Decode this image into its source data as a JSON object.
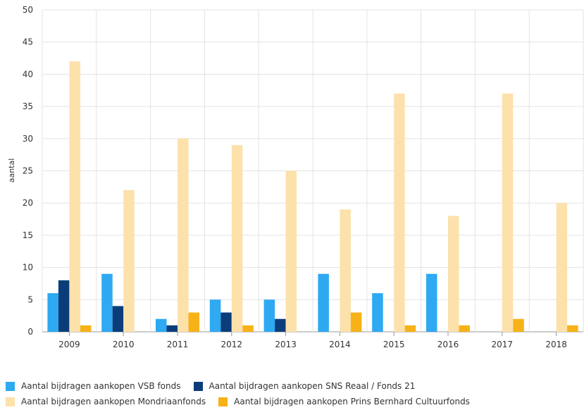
{
  "chart_data": {
    "type": "bar",
    "title": "",
    "xlabel": "",
    "ylabel": "aantal",
    "ylim": [
      0,
      50
    ],
    "yticks": [
      0,
      5,
      10,
      15,
      20,
      25,
      30,
      35,
      40,
      45,
      50
    ],
    "grid": true,
    "legend_position": "bottom",
    "categories": [
      "2009",
      "2010",
      "2011",
      "2012",
      "2013",
      "2014",
      "2015",
      "2016",
      "2017",
      "2018"
    ],
    "series": [
      {
        "name": "Aantal bijdragen aankopen VSB fonds",
        "color": "#2ea9f2",
        "values": [
          6,
          9,
          2,
          5,
          5,
          9,
          6,
          9,
          0,
          0
        ]
      },
      {
        "name": "Aantal bijdragen aankopen SNS Reaal / Fonds 21",
        "color": "#0b3d7a",
        "values": [
          8,
          4,
          1,
          3,
          2,
          0,
          0,
          0,
          0,
          0
        ]
      },
      {
        "name": "Aantal bijdragen aankopen Mondriaanfonds",
        "color": "#fde1ab",
        "values": [
          42,
          22,
          30,
          29,
          25,
          19,
          37,
          18,
          37,
          20
        ]
      },
      {
        "name": "Aantal bijdragen aankopen Prins Bernhard Cultuurfonds",
        "color": "#f7b217",
        "values": [
          1,
          0,
          3,
          1,
          0,
          3,
          1,
          1,
          2,
          1
        ]
      }
    ]
  }
}
